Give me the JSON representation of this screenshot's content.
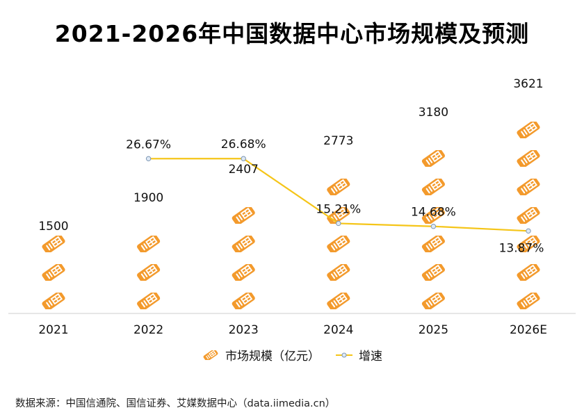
{
  "chart_data": {
    "type": "bar",
    "title": "2021-2026年中国数据中心市场规模及预测",
    "categories": [
      "2021",
      "2022",
      "2023",
      "2024",
      "2025",
      "2026E"
    ],
    "series": [
      {
        "name": "市场规模（亿元）",
        "type": "pictograph-bar",
        "values": [
          1500,
          1900,
          2407,
          2773,
          3180,
          3621
        ],
        "labels": [
          "1500",
          "1900",
          "2407",
          "2773",
          "3180",
          "3621"
        ]
      },
      {
        "name": "增速",
        "type": "line",
        "values": [
          null,
          26.67,
          26.68,
          15.21,
          14.68,
          13.87
        ],
        "labels": [
          "",
          "26.67%",
          "26.68%",
          "15.21%",
          "14.68%",
          "13.87%"
        ]
      }
    ],
    "xlabel": "",
    "ylabel": "",
    "ylim": [
      0,
      4000
    ],
    "y2lim": [
      0,
      40
    ],
    "legend": "bottom-center",
    "grid": false
  },
  "colors": {
    "bar": "#f39a2c",
    "line": "#f5c518",
    "marker_fill": "#dfe9f5",
    "marker_stroke": "#7b95b3",
    "axis": "#cccccc"
  },
  "source": "数据来源：中国信通院、国信证券、艾媒数据中心（data.iimedia.cn）"
}
